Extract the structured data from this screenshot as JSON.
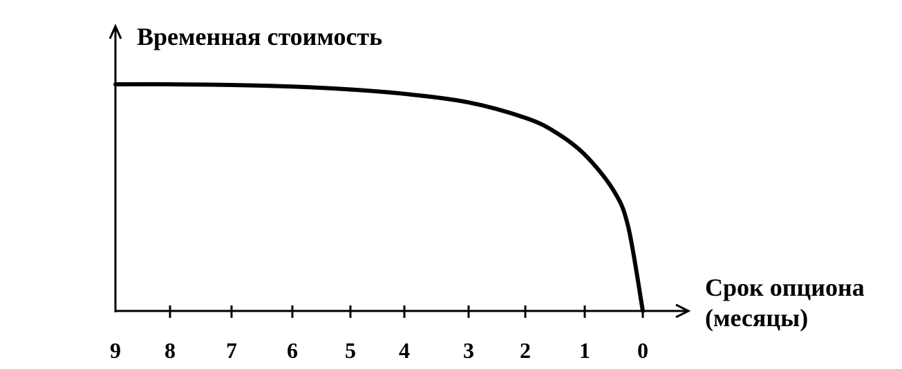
{
  "chart_data": {
    "type": "line",
    "ylabel": "Временная стоимость",
    "xlabel_lines": [
      "Срок опциона",
      "(месяцы)"
    ],
    "x_ticks": [
      "9",
      "8",
      "7",
      "6",
      "5",
      "4",
      "3",
      "2",
      "1",
      "0"
    ],
    "x_direction": "descending",
    "xlim": [
      9,
      0
    ],
    "ylim": [
      0,
      1
    ],
    "y_tick_labels": false,
    "grid": false,
    "legend": "none",
    "line_color": "#000000",
    "series": [
      {
        "x": [
          9,
          8,
          7,
          6,
          5,
          4,
          3,
          2,
          1.5,
          1,
          0.5,
          0.25,
          0
        ],
        "y": [
          1.0,
          1.0,
          0.997,
          0.99,
          0.977,
          0.958,
          0.92,
          0.852,
          0.79,
          0.69,
          0.53,
          0.37,
          0.0
        ]
      }
    ]
  }
}
